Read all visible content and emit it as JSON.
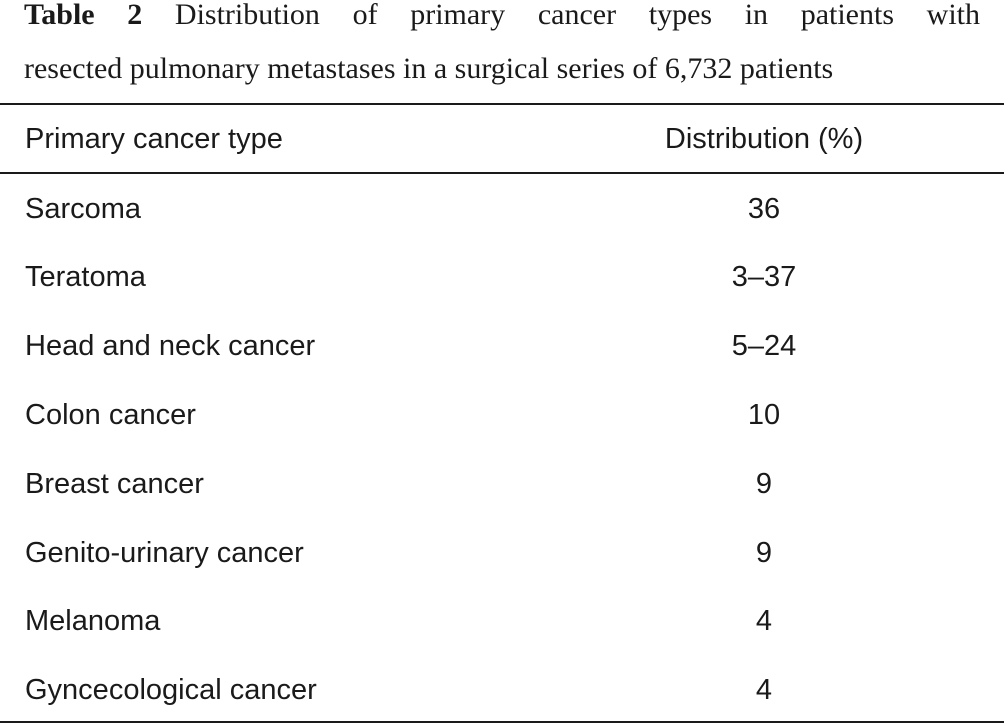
{
  "table": {
    "label": "Table 2",
    "caption_line1": "Distribution of primary cancer types in patients with",
    "caption_line2": "resected pulmonary metastases in a surgical series of 6,732 patients",
    "headers": {
      "type": "Primary cancer type",
      "distribution": "Distribution (%)"
    },
    "rows": [
      {
        "type": "Sarcoma",
        "distribution": "36"
      },
      {
        "type": "Teratoma",
        "distribution": "3–37"
      },
      {
        "type": "Head and neck cancer",
        "distribution": "5–24"
      },
      {
        "type": "Colon cancer",
        "distribution": "10"
      },
      {
        "type": "Breast cancer",
        "distribution": "9"
      },
      {
        "type": "Genito-urinary cancer",
        "distribution": "9"
      },
      {
        "type": "Melanoma",
        "distribution": "4"
      },
      {
        "type": "Gyncecological cancer",
        "distribution": "4"
      }
    ]
  }
}
